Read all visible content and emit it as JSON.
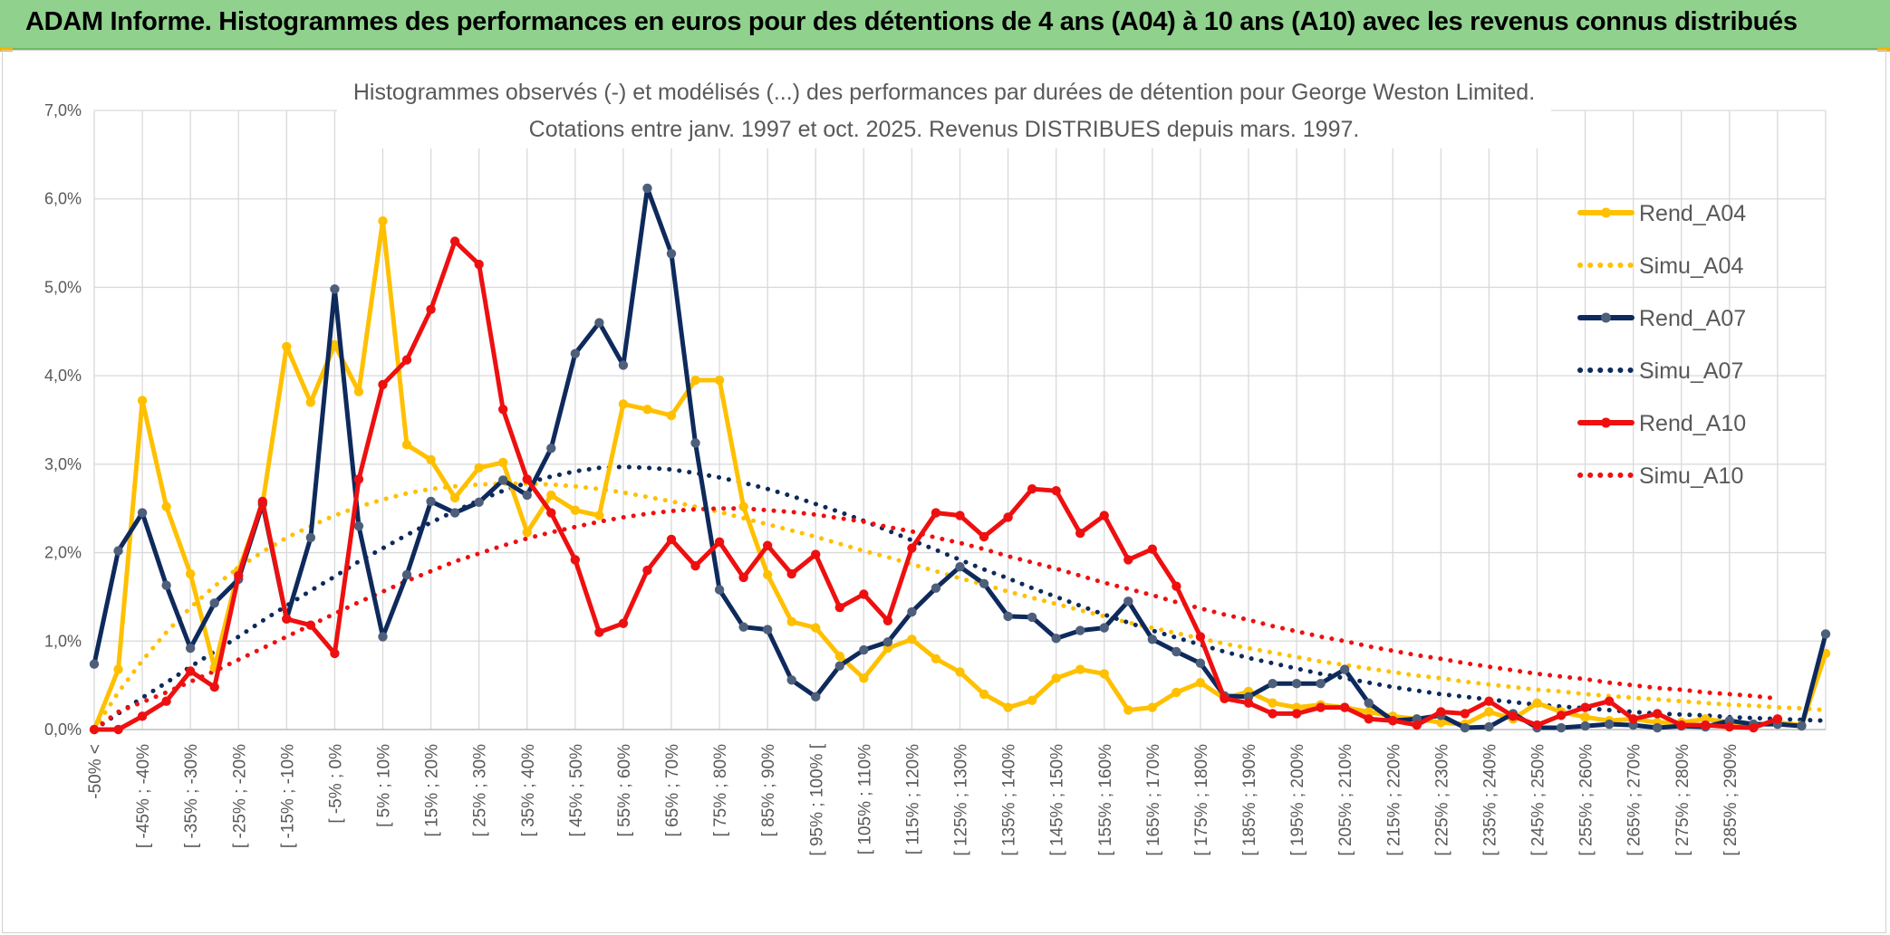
{
  "header": {
    "title": "ADAM Informe. Histogrammes des performances en euros pour des détentions de 4 ans (A04) à 10 ans (A10) avec les revenus connus distribués"
  },
  "chart_data": {
    "type": "line",
    "title": "Histogrammes observés (-) et modélisés (...) des performances par durées de détention pour George Weston Limited.",
    "subtitle": "Cotations entre janv. 1997 et oct. 2025. Revenus DISTRIBUES depuis mars. 1997.",
    "ylim": [
      0,
      7
    ],
    "ytick_values": [
      0,
      1,
      2,
      3,
      4,
      5,
      6,
      7
    ],
    "ytick_labels": [
      "0,0%",
      "1,0%",
      "2,0%",
      "3,0%",
      "4,0%",
      "5,0%",
      "6,0%",
      "7,0%"
    ],
    "grid": true,
    "legend_position": "right",
    "x_labels": [
      "-50% <",
      "[ -45% ; -40%",
      "[ -35% ; -30%",
      "[ -25% ; -20%",
      "[ -15% ; -10%",
      "[ -5% ; 0%",
      "[ 5% ; 10%",
      "[ 15% ; 20%",
      "[ 25% ; 30%",
      "[ 35% ; 40%",
      "[ 45% ; 50%",
      "[ 55% ; 60%",
      "[ 65% ; 70%",
      "[ 75% ; 80%",
      "[ 85% ; 90%",
      "[ 95% ; 100% [",
      "[ 105% ; 110%",
      "[ 115% ; 120%",
      "[ 125% ; 130%",
      "[ 135% ; 140%",
      "[ 145% ; 150%",
      "[ 155% ; 160%",
      "[ 165% ; 170%",
      "[ 175% ; 180%",
      "[ 185% ; 190%",
      "[ 195% ; 200%",
      "[ 205% ; 210%",
      "[ 215% ; 220%",
      "[ 225% ; 230%",
      "[ 235% ; 240%",
      "[ 245% ; 250%",
      "[ 255% ; 260%",
      "[ 265% ; 270%",
      "[ 275% ; 280%",
      "[ 285% ; 290%"
    ],
    "series": [
      {
        "name": "Rend_A04",
        "style": "solid",
        "color": "#ffc000",
        "values": [
          0.0,
          0.68,
          3.72,
          2.52,
          1.76,
          0.7,
          1.8,
          2.55,
          4.33,
          3.7,
          4.35,
          3.82,
          5.75,
          3.22,
          3.05,
          2.62,
          2.96,
          3.02,
          2.23,
          2.65,
          2.48,
          2.42,
          3.68,
          3.62,
          3.55,
          3.95,
          3.95,
          2.52,
          1.75,
          1.22,
          1.15,
          0.83,
          0.58,
          0.92,
          1.02,
          0.8,
          0.65,
          0.4,
          0.25,
          0.33,
          0.58,
          0.68,
          0.63,
          0.22,
          0.25,
          0.42,
          0.53,
          0.35,
          0.43,
          0.3,
          0.25,
          0.28,
          0.25,
          0.2,
          0.15,
          0.12,
          0.08,
          0.06,
          0.2,
          0.12,
          0.3,
          0.2,
          0.14,
          0.1,
          0.12,
          0.08,
          0.08,
          0.12,
          0.08,
          0.05,
          0.08,
          0.05,
          0.86
        ]
      },
      {
        "name": "Simu_A04",
        "style": "dotted",
        "color": "#ffc000",
        "values": [
          0.0,
          0.42,
          0.78,
          1.1,
          1.38,
          1.62,
          1.83,
          2.01,
          2.17,
          2.3,
          2.42,
          2.52,
          2.6,
          2.67,
          2.72,
          2.75,
          2.77,
          2.78,
          2.78,
          2.77,
          2.75,
          2.72,
          2.68,
          2.63,
          2.58,
          2.52,
          2.46,
          2.39,
          2.32,
          2.25,
          2.18,
          2.1,
          2.02,
          1.95,
          1.87,
          1.79,
          1.71,
          1.64,
          1.56,
          1.49,
          1.42,
          1.35,
          1.28,
          1.21,
          1.15,
          1.09,
          1.03,
          0.97,
          0.92,
          0.87,
          0.82,
          0.77,
          0.73,
          0.69,
          0.65,
          0.61,
          0.58,
          0.54,
          0.51,
          0.48,
          0.45,
          0.43,
          0.4,
          0.38,
          0.36,
          0.34,
          0.32,
          0.3,
          0.28,
          0.27,
          0.25,
          0.24,
          0.22
        ]
      },
      {
        "name": "Rend_A07",
        "style": "solid",
        "color": "#0e2a5c",
        "values": [
          0.74,
          2.02,
          2.45,
          1.63,
          0.92,
          1.43,
          1.7,
          2.55,
          1.25,
          2.17,
          4.98,
          2.3,
          1.05,
          1.75,
          2.58,
          2.45,
          2.57,
          2.82,
          2.65,
          3.18,
          4.25,
          4.6,
          4.12,
          6.12,
          5.38,
          3.24,
          1.58,
          1.16,
          1.13,
          0.56,
          0.37,
          0.72,
          0.9,
          0.99,
          1.33,
          1.6,
          1.84,
          1.65,
          1.28,
          1.27,
          1.03,
          1.12,
          1.15,
          1.45,
          1.02,
          0.88,
          0.75,
          0.38,
          0.37,
          0.52,
          0.52,
          0.52,
          0.68,
          0.3,
          0.1,
          0.12,
          0.16,
          0.02,
          0.03,
          0.18,
          0.02,
          0.02,
          0.04,
          0.06,
          0.05,
          0.02,
          0.04,
          0.03,
          0.1,
          0.06,
          0.06,
          0.04,
          1.08
        ]
      },
      {
        "name": "Simu_A07",
        "style": "dotted",
        "color": "#0e2a5c",
        "values": [
          0.0,
          0.18,
          0.36,
          0.53,
          0.71,
          0.88,
          1.05,
          1.23,
          1.4,
          1.57,
          1.73,
          1.9,
          2.05,
          2.2,
          2.34,
          2.47,
          2.59,
          2.7,
          2.79,
          2.86,
          2.92,
          2.96,
          2.97,
          2.96,
          2.94,
          2.9,
          2.85,
          2.79,
          2.72,
          2.64,
          2.55,
          2.46,
          2.36,
          2.25,
          2.14,
          2.03,
          1.92,
          1.81,
          1.71,
          1.6,
          1.5,
          1.4,
          1.3,
          1.21,
          1.12,
          1.04,
          0.96,
          0.88,
          0.81,
          0.75,
          0.69,
          0.63,
          0.58,
          0.53,
          0.48,
          0.44,
          0.4,
          0.37,
          0.34,
          0.31,
          0.28,
          0.26,
          0.24,
          0.22,
          0.2,
          0.18,
          0.17,
          0.16,
          0.14,
          0.13,
          0.12,
          0.11,
          0.1
        ]
      },
      {
        "name": "Rend_A10",
        "style": "solid",
        "color": "#ee1010",
        "values": [
          0.0,
          0.0,
          0.15,
          0.32,
          0.66,
          0.48,
          1.74,
          2.58,
          1.25,
          1.18,
          0.86,
          2.83,
          3.9,
          4.18,
          4.75,
          5.52,
          5.26,
          3.62,
          2.83,
          2.45,
          1.92,
          1.1,
          1.2,
          1.8,
          2.15,
          1.85,
          2.12,
          1.72,
          2.08,
          1.76,
          1.98,
          1.38,
          1.53,
          1.23,
          2.05,
          2.45,
          2.42,
          2.18,
          2.4,
          2.72,
          2.7,
          2.22,
          2.42,
          1.92,
          2.04,
          1.62,
          1.05,
          0.35,
          0.3,
          0.18,
          0.18,
          0.25,
          0.25,
          0.12,
          0.1,
          0.05,
          0.2,
          0.18,
          0.32,
          0.15,
          0.05,
          0.16,
          0.25,
          0.32,
          0.12,
          0.18,
          0.05,
          0.05,
          0.03,
          0.02,
          0.12
        ]
      },
      {
        "name": "Simu_A10",
        "style": "dotted",
        "color": "#ee1010",
        "values": [
          0.0,
          0.2,
          0.31,
          0.42,
          0.54,
          0.66,
          0.79,
          0.92,
          1.05,
          1.18,
          1.31,
          1.44,
          1.56,
          1.68,
          1.79,
          1.9,
          1.99,
          2.08,
          2.16,
          2.23,
          2.29,
          2.35,
          2.4,
          2.44,
          2.47,
          2.49,
          2.5,
          2.5,
          2.48,
          2.46,
          2.43,
          2.39,
          2.35,
          2.29,
          2.24,
          2.17,
          2.11,
          2.04,
          1.96,
          1.89,
          1.82,
          1.74,
          1.66,
          1.59,
          1.52,
          1.44,
          1.37,
          1.3,
          1.24,
          1.17,
          1.11,
          1.05,
          1.0,
          0.94,
          0.89,
          0.84,
          0.8,
          0.75,
          0.71,
          0.67,
          0.63,
          0.6,
          0.57,
          0.53,
          0.5,
          0.47,
          0.45,
          0.42,
          0.4,
          0.38,
          0.35
        ]
      }
    ]
  }
}
